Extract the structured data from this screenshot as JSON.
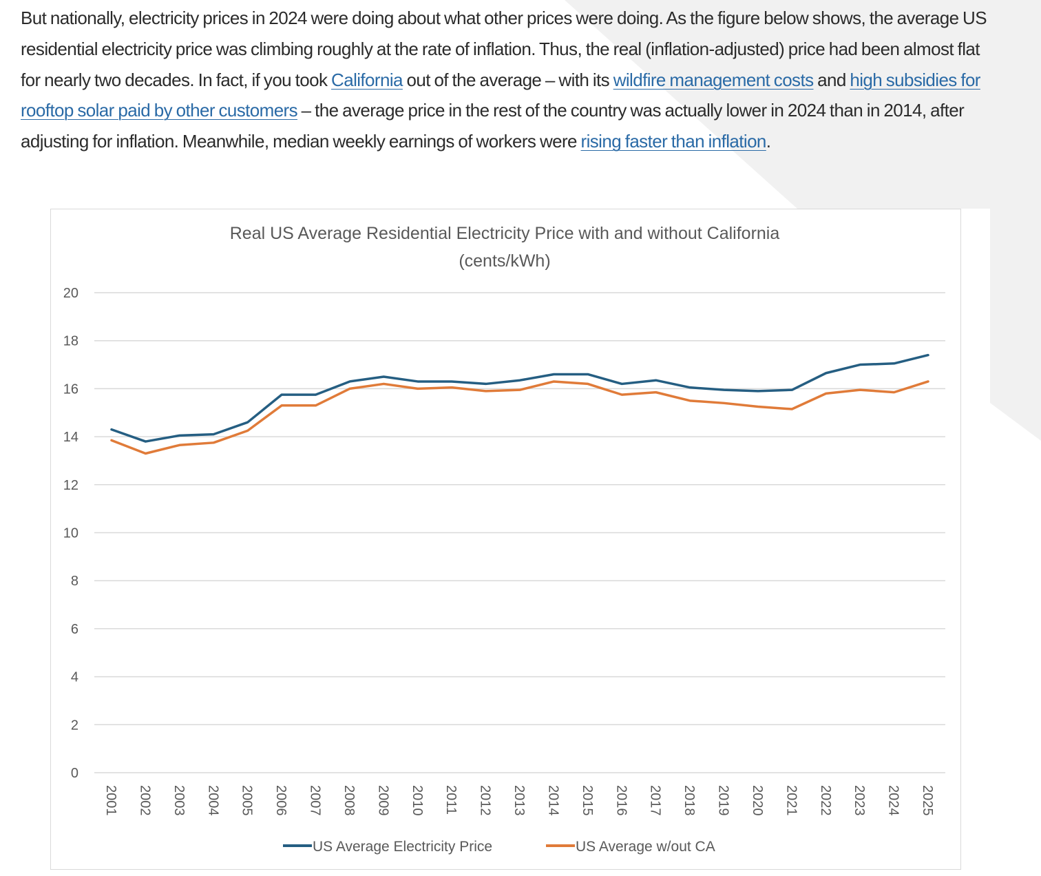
{
  "article": {
    "segments": [
      {
        "text": "But nationally, electricity prices in 2024 were doing about what other prices were doing. As the figure below shows, the average US residential electricity price was climbing roughly at the rate of inflation. Thus, the real (inflation-adjusted) price had been almost flat for nearly two decades. In fact, if you took ",
        "link": false
      },
      {
        "text": "California",
        "link": true
      },
      {
        "text": " out of the average – with its ",
        "link": false
      },
      {
        "text": "wildfire management costs",
        "link": true
      },
      {
        "text": " and ",
        "link": false
      },
      {
        "text": "high subsidies for rooftop solar paid by other customers",
        "link": true
      },
      {
        "text": " – the average price in the rest of the country was actually lower in 2024 than in 2014, after adjusting for inflation. Meanwhile, median weekly earnings of workers were ",
        "link": false
      },
      {
        "text": "rising faster than inflation",
        "link": true
      },
      {
        "text": ".",
        "link": false
      }
    ]
  },
  "colors": {
    "series_blue": "#255e82",
    "series_orange": "#e07b39",
    "link": "#2a6aa6",
    "body_text": "#2b2b2b",
    "gridline": "#d9d9d9",
    "axis_text": "#595959",
    "bg_shape": "#f1f1f1"
  },
  "chart_data": {
    "type": "line",
    "title": "Real US Average Residential Electricity Price with and without California",
    "subtitle": "(cents/kWh)",
    "xlabel": "",
    "ylabel": "",
    "ylim": [
      0,
      20
    ],
    "yticks": [
      "0",
      "2",
      "4",
      "6",
      "8",
      "10",
      "12",
      "14",
      "16",
      "18",
      "20"
    ],
    "grid": true,
    "legend_position": "bottom",
    "x": [
      "2001",
      "2002",
      "2003",
      "2004",
      "2005",
      "2006",
      "2007",
      "2008",
      "2009",
      "2010",
      "2011",
      "2012",
      "2013",
      "2014",
      "2015",
      "2016",
      "2017",
      "2018",
      "2019",
      "2020",
      "2021",
      "2022",
      "2023",
      "2024",
      "2025"
    ],
    "series": [
      {
        "name": "US Average Electricity Price",
        "color": "#255e82",
        "values": [
          14.3,
          13.8,
          14.05,
          14.1,
          14.6,
          15.75,
          15.75,
          16.3,
          16.5,
          16.3,
          16.3,
          16.2,
          16.35,
          16.6,
          16.6,
          16.2,
          16.35,
          16.05,
          15.95,
          15.9,
          15.95,
          16.65,
          17.0,
          17.05,
          17.4
        ]
      },
      {
        "name": "US Average w/out CA",
        "color": "#e07b39",
        "values": [
          13.85,
          13.3,
          13.65,
          13.75,
          14.25,
          15.3,
          15.3,
          16.0,
          16.2,
          16.0,
          16.05,
          15.9,
          15.95,
          16.3,
          16.2,
          15.75,
          15.85,
          15.5,
          15.4,
          15.25,
          15.15,
          15.8,
          15.95,
          15.85,
          16.3
        ]
      }
    ]
  }
}
